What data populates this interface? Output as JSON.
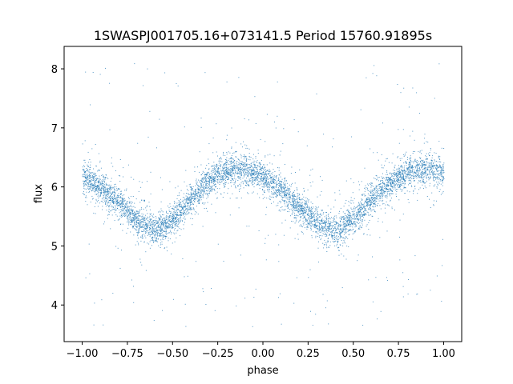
{
  "chart_data": {
    "type": "scatter",
    "title": "1SWASPJ001705.16+073141.5 Period 15760.91895s",
    "xlabel": "phase",
    "ylabel": "flux",
    "xlim": [
      -1.1,
      1.1
    ],
    "ylim": [
      3.38,
      8.38
    ],
    "x_ticks": [
      -1.0,
      -0.75,
      -0.5,
      -0.25,
      0.0,
      0.25,
      0.5,
      0.75,
      1.0
    ],
    "x_tick_labels": [
      "−1.00",
      "−0.75",
      "−0.50",
      "−0.25",
      "0.00",
      "0.25",
      "0.50",
      "0.75",
      "1.00"
    ],
    "y_ticks": [
      4,
      5,
      6,
      7,
      8
    ],
    "y_tick_labels": [
      "4",
      "5",
      "6",
      "7",
      "8"
    ],
    "grid": false,
    "marker_color": "#1f77b4",
    "series": [
      {
        "phase": [
          -1.0,
          -0.9,
          -0.8,
          -0.7,
          -0.6,
          -0.5,
          -0.4,
          -0.3,
          -0.2,
          -0.1,
          0.0,
          0.1,
          0.2,
          0.3,
          0.4,
          0.5,
          0.6,
          0.7,
          0.8,
          0.9,
          1.0
        ],
        "mean_flux": [
          6.2,
          6.0,
          5.75,
          5.45,
          5.25,
          5.45,
          5.8,
          6.1,
          6.3,
          6.3,
          6.2,
          5.95,
          5.65,
          5.4,
          5.25,
          5.45,
          5.8,
          6.05,
          6.25,
          6.3,
          6.25
        ],
        "scatter_sd": 0.12,
        "outlier_range": [
          3.6,
          8.1
        ]
      }
    ]
  }
}
